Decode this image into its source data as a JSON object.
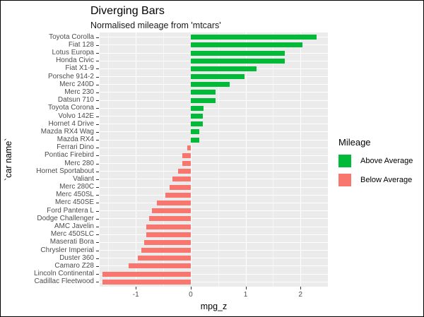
{
  "title": "Diverging Bars",
  "subtitle": "Normalised mileage from 'mtcars'",
  "colors": {
    "above": "#00ba38",
    "below": "#f8766d",
    "panel_bg": "#ebebeb",
    "grid": "#ffffff",
    "axis_text": "#4d4d4d",
    "tick_mark": "#333333"
  },
  "legend": {
    "title": "Mileage",
    "entries": [
      {
        "label": "Above Average",
        "color_key": "above"
      },
      {
        "label": "Below Average",
        "color_key": "below"
      }
    ]
  },
  "chart_data": {
    "type": "bar",
    "orientation": "horizontal",
    "title": "Diverging Bars",
    "subtitle": "Normalised mileage from 'mtcars'",
    "xlabel": "mpg_z",
    "ylabel": "`car name`",
    "xlim": [
      -1.66,
      2.5
    ],
    "x_major_ticks": [
      -1,
      0,
      1,
      2
    ],
    "x_minor_ticks": [
      -1.5,
      -0.5,
      0.5,
      1.5,
      2.5
    ],
    "grid": true,
    "legend_position": "right",
    "categories": [
      "Toyota Corolla",
      "Fiat 128",
      "Lotus Europa",
      "Honda Civic",
      "Fiat X1-9",
      "Porsche 914-2",
      "Merc 240D",
      "Merc 230",
      "Datsun 710",
      "Toyota Corona",
      "Volvo 142E",
      "Hornet 4 Drive",
      "Mazda RX4 Wag",
      "Mazda RX4",
      "Ferrari Dino",
      "Pontiac Firebird",
      "Merc 280",
      "Hornet Sportabout",
      "Valiant",
      "Merc 280C",
      "Merc 450SL",
      "Merc 450SE",
      "Ford Pantera L",
      "Dodge Challenger",
      "AMC Javelin",
      "Merc 450SLC",
      "Maserati Bora",
      "Chrysler Imperial",
      "Duster 360",
      "Camaro Z28",
      "Lincoln Continental",
      "Cadillac Fleetwood"
    ],
    "values": [
      2.291,
      2.042,
      1.711,
      1.711,
      1.196,
      0.98,
      0.715,
      0.45,
      0.45,
      0.234,
      0.217,
      0.217,
      0.151,
      0.151,
      -0.065,
      -0.148,
      -0.148,
      -0.231,
      -0.33,
      -0.38,
      -0.463,
      -0.612,
      -0.712,
      -0.762,
      -0.811,
      -0.811,
      -0.845,
      -0.894,
      -0.961,
      -1.127,
      -1.608,
      -1.608
    ]
  }
}
